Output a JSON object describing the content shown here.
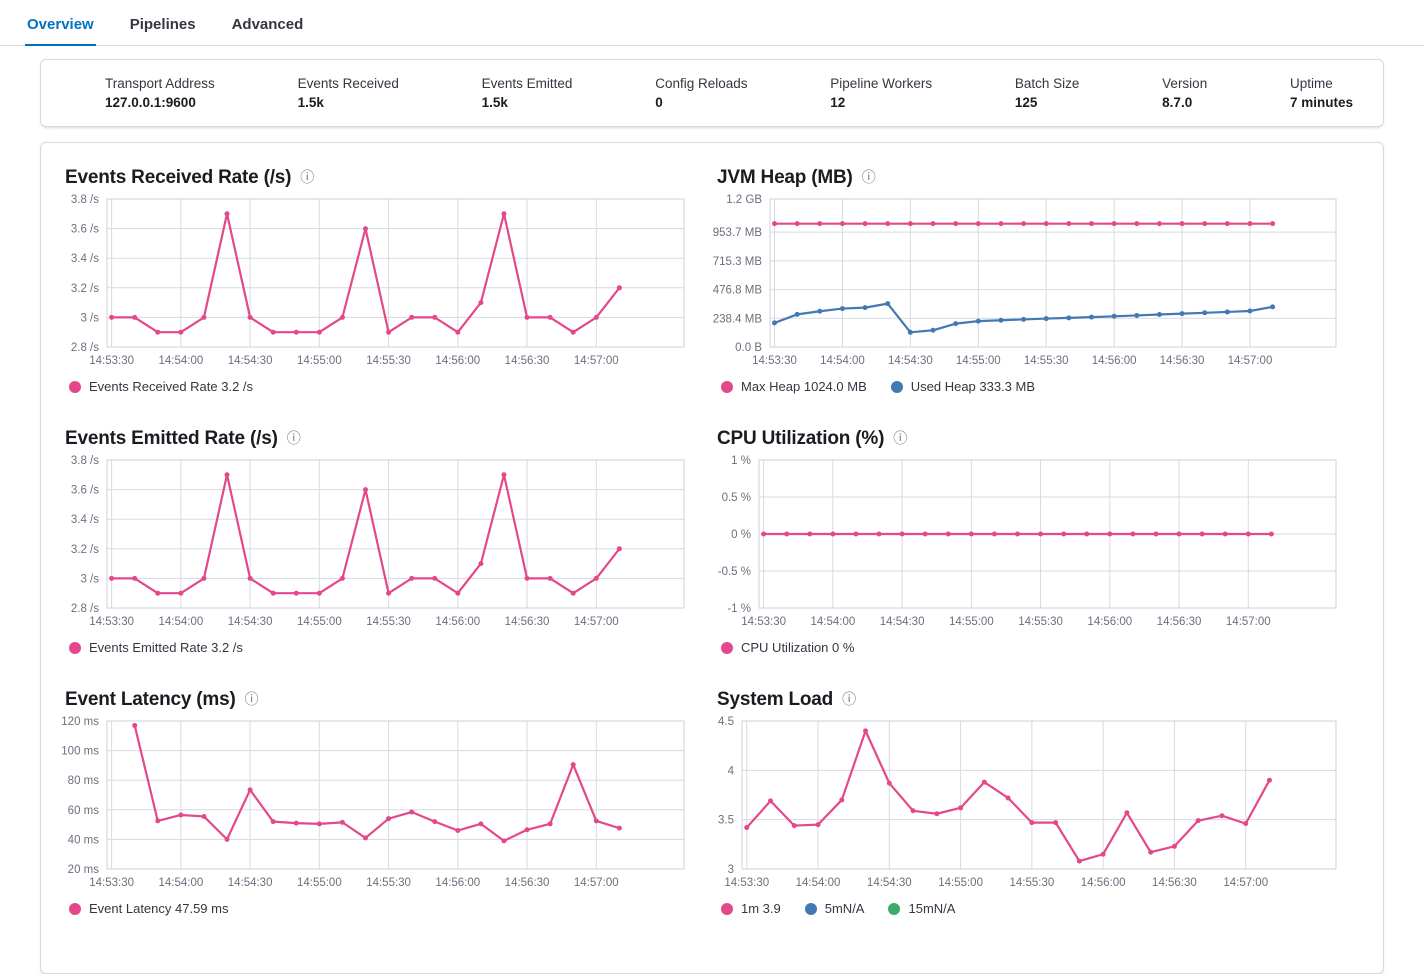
{
  "tabs": [
    {
      "label": "Overview",
      "active": true
    },
    {
      "label": "Pipelines",
      "active": false
    },
    {
      "label": "Advanced",
      "active": false
    }
  ],
  "icons": {
    "info": "ⓘ"
  },
  "colors": {
    "tab_active": "#0071C2",
    "pink": "#E4488A",
    "blue": "#4379B2",
    "green": "#3CAB6B",
    "grid": "#D8DADF",
    "tick_text": "#69707D"
  },
  "summary": {
    "items": [
      {
        "label": "Transport Address",
        "value": "127.0.0.1:9600"
      },
      {
        "label": "Events Received",
        "value": "1.5k"
      },
      {
        "label": "Events Emitted",
        "value": "1.5k"
      },
      {
        "label": "Config Reloads",
        "value": "0"
      },
      {
        "label": "Pipeline Workers",
        "value": "12"
      },
      {
        "label": "Batch Size",
        "value": "125"
      },
      {
        "label": "Version",
        "value": "8.7.0"
      },
      {
        "label": "Uptime",
        "value": "7 minutes"
      }
    ]
  },
  "time_ticks": [
    "14:53:30",
    "14:54:00",
    "14:54:30",
    "14:55:00",
    "14:55:30",
    "14:56:00",
    "14:56:30",
    "14:57:00"
  ],
  "charts": {
    "events_received": {
      "type": "line",
      "title": "Events Received Rate (/s)",
      "ylim": [
        2.8,
        3.8
      ],
      "yticks": [
        {
          "value": 3.8,
          "label": "3.8 /s"
        },
        {
          "value": 3.6,
          "label": "3.6 /s"
        },
        {
          "value": 3.4,
          "label": "3.4 /s"
        },
        {
          "value": 3.2,
          "label": "3.2 /s"
        },
        {
          "value": 3.0,
          "label": "3 /s"
        },
        {
          "value": 2.8,
          "label": "2.8 /s"
        }
      ],
      "xtick_indices": [
        0,
        3,
        6,
        9,
        12,
        15,
        18,
        21
      ],
      "x_domain": [
        -0.2,
        24.8
      ],
      "series": [
        {
          "name": "Events Received Rate",
          "color": "#E4488A",
          "start_index": 0,
          "values": [
            3,
            3,
            2.9,
            2.9,
            3,
            3.7,
            3,
            2.9,
            2.9,
            2.9,
            3,
            3.6,
            2.9,
            3,
            3,
            2.9,
            3.1,
            3.7,
            3,
            3,
            2.9,
            3,
            3.2
          ]
        }
      ],
      "legend": [
        {
          "label": "Events Received Rate 3.2 /s",
          "color": "#E4488A"
        }
      ]
    },
    "jvm_heap": {
      "type": "line",
      "title": "JVM Heap (MB)",
      "ylim": [
        0,
        1228.8
      ],
      "yticks": [
        {
          "value": 1228.8,
          "label": "1.2 GB"
        },
        {
          "value": 953.7,
          "label": "953.7 MB"
        },
        {
          "value": 715.3,
          "label": "715.3 MB"
        },
        {
          "value": 476.8,
          "label": "476.8 MB"
        },
        {
          "value": 238.4,
          "label": "238.4 MB"
        },
        {
          "value": 0,
          "label": "0.0 B"
        }
      ],
      "xtick_indices": [
        0,
        3,
        6,
        9,
        12,
        15,
        18,
        21
      ],
      "x_domain": [
        -0.2,
        24.8
      ],
      "series": [
        {
          "name": "Max Heap",
          "color": "#E4488A",
          "start_index": 0,
          "values": [
            1024,
            1024,
            1024,
            1024,
            1024,
            1024,
            1024,
            1024,
            1024,
            1024,
            1024,
            1024,
            1024,
            1024,
            1024,
            1024,
            1024,
            1024,
            1024,
            1024,
            1024,
            1024,
            1024
          ]
        },
        {
          "name": "Used Heap",
          "color": "#4379B2",
          "start_index": 0,
          "values": [
            200,
            271,
            297,
            319,
            327,
            360,
            122,
            139,
            194,
            215,
            222,
            229,
            236,
            242,
            248,
            255,
            262,
            270,
            277,
            284,
            291,
            299,
            333.3
          ]
        }
      ],
      "legend": [
        {
          "label": "Max Heap 1024.0 MB",
          "color": "#E4488A"
        },
        {
          "label": "Used Heap 333.3 MB",
          "color": "#4379B2"
        }
      ]
    },
    "events_emitted": {
      "type": "line",
      "title": "Events Emitted Rate (/s)",
      "ylim": [
        2.8,
        3.8
      ],
      "yticks": [
        {
          "value": 3.8,
          "label": "3.8 /s"
        },
        {
          "value": 3.6,
          "label": "3.6 /s"
        },
        {
          "value": 3.4,
          "label": "3.4 /s"
        },
        {
          "value": 3.2,
          "label": "3.2 /s"
        },
        {
          "value": 3.0,
          "label": "3 /s"
        },
        {
          "value": 2.8,
          "label": "2.8 /s"
        }
      ],
      "xtick_indices": [
        0,
        3,
        6,
        9,
        12,
        15,
        18,
        21
      ],
      "x_domain": [
        -0.2,
        24.8
      ],
      "series": [
        {
          "name": "Events Emitted Rate",
          "color": "#E4488A",
          "start_index": 0,
          "values": [
            3,
            3,
            2.9,
            2.9,
            3,
            3.7,
            3,
            2.9,
            2.9,
            2.9,
            3,
            3.6,
            2.9,
            3,
            3,
            2.9,
            3.1,
            3.7,
            3,
            3,
            2.9,
            3,
            3.2
          ]
        }
      ],
      "legend": [
        {
          "label": "Events Emitted Rate 3.2 /s",
          "color": "#E4488A"
        }
      ]
    },
    "cpu_utilization": {
      "type": "line",
      "title": "CPU Utilization (%)",
      "ylim": [
        -1,
        1
      ],
      "yticks": [
        {
          "value": 1,
          "label": "1 %"
        },
        {
          "value": 0.5,
          "label": "0.5 %"
        },
        {
          "value": 0,
          "label": "0 %"
        },
        {
          "value": -0.5,
          "label": "-0.5 %"
        },
        {
          "value": -1,
          "label": "-1 %"
        }
      ],
      "xtick_indices": [
        0,
        3,
        6,
        9,
        12,
        15,
        18,
        21
      ],
      "x_domain": [
        -0.2,
        24.8
      ],
      "series": [
        {
          "name": "CPU Utilization",
          "color": "#E4488A",
          "start_index": 0,
          "values": [
            0,
            0,
            0,
            0,
            0,
            0,
            0,
            0,
            0,
            0,
            0,
            0,
            0,
            0,
            0,
            0,
            0,
            0,
            0,
            0,
            0,
            0,
            0
          ]
        }
      ],
      "legend": [
        {
          "label": "CPU Utilization 0 %",
          "color": "#E4488A"
        }
      ]
    },
    "event_latency": {
      "type": "line",
      "title": "Event Latency (ms)",
      "ylim": [
        20,
        120
      ],
      "yticks": [
        {
          "value": 120,
          "label": "120 ms"
        },
        {
          "value": 100,
          "label": "100 ms"
        },
        {
          "value": 80,
          "label": "80 ms"
        },
        {
          "value": 60,
          "label": "60 ms"
        },
        {
          "value": 40,
          "label": "40 ms"
        },
        {
          "value": 20,
          "label": "20 ms"
        }
      ],
      "xtick_indices": [
        0,
        3,
        6,
        9,
        12,
        15,
        18,
        21
      ],
      "x_domain": [
        -0.2,
        24.8
      ],
      "series": [
        {
          "name": "Event Latency",
          "color": "#E4488A",
          "start_index": 1,
          "values": [
            117,
            52.5,
            56.5,
            55.5,
            40,
            73.5,
            52,
            51,
            50.5,
            51.5,
            41,
            54,
            58.5,
            52,
            46,
            50.5,
            39,
            46.5,
            50.5,
            90.5,
            52.5,
            47.59
          ]
        }
      ],
      "legend": [
        {
          "label": "Event Latency 47.59 ms",
          "color": "#E4488A"
        }
      ]
    },
    "system_load": {
      "type": "line",
      "title": "System Load",
      "ylim": [
        3,
        4.5
      ],
      "yticks": [
        {
          "value": 4.5,
          "label": "4.5"
        },
        {
          "value": 4,
          "label": "4"
        },
        {
          "value": 3.5,
          "label": "3.5"
        },
        {
          "value": 3,
          "label": "3"
        }
      ],
      "xtick_indices": [
        0,
        3,
        6,
        9,
        12,
        15,
        18,
        21
      ],
      "x_domain": [
        -0.2,
        24.8
      ],
      "series": [
        {
          "name": "1m",
          "color": "#E4488A",
          "start_index": 0,
          "values": [
            3.42,
            3.69,
            3.44,
            3.45,
            3.7,
            4.4,
            3.87,
            3.59,
            3.56,
            3.62,
            3.88,
            3.72,
            3.47,
            3.47,
            3.08,
            3.15,
            3.57,
            3.17,
            3.23,
            3.49,
            3.54,
            3.46,
            3.9
          ]
        }
      ],
      "legend": [
        {
          "label": "1m 3.9",
          "color": "#E4488A"
        },
        {
          "label": "5mN/A",
          "color": "#4379B2"
        },
        {
          "label": "15mN/A",
          "color": "#3CAB6B"
        }
      ]
    }
  }
}
